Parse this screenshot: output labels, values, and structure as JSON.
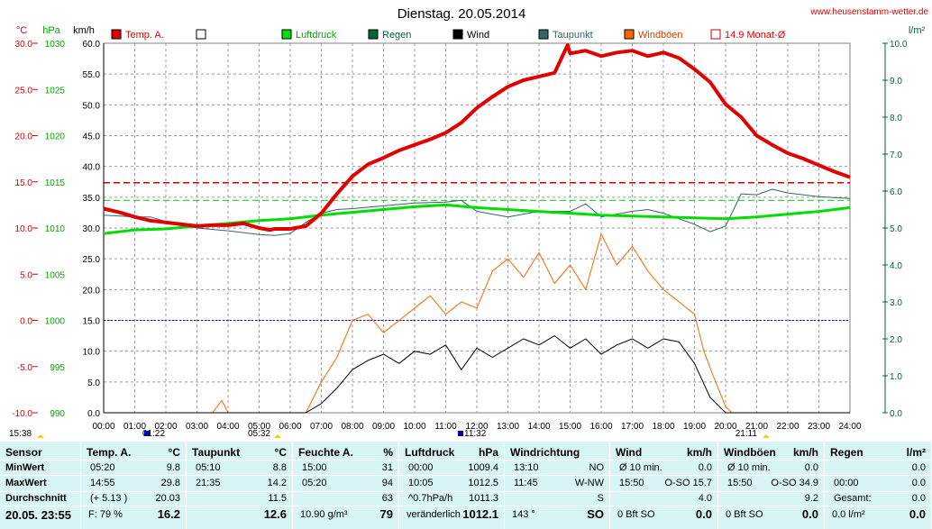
{
  "chart_data": {
    "type": "line",
    "title": "Dienstag. 20.05.2014",
    "website": "www.heusenstamm-wetter.de",
    "units": {
      "temp": "°C",
      "pressure": "hPa",
      "speed": "km/h",
      "rain": "l/m²"
    },
    "axes": {
      "temp_ticks": [
        "30.0",
        "25.0",
        "20.0",
        "15.0",
        "10.0",
        "5.0",
        "0.0",
        "-5.0",
        "-10.0"
      ],
      "pressure_ticks": [
        "1030",
        "1025",
        "1020",
        "1015",
        "1010",
        "1005",
        "1000",
        "995",
        "990"
      ],
      "speed_ticks": [
        "60.0",
        "55.0",
        "50.0",
        "45.0",
        "40.0",
        "35.0",
        "30.0",
        "25.0",
        "20.0",
        "15.0",
        "10.0",
        "5.0",
        "0.0"
      ],
      "rain_ticks": [
        "10.0",
        "9.0",
        "8.0",
        "7.0",
        "6.0",
        "5.0",
        "4.0",
        "3.0",
        "2.0",
        "1.0",
        "0.0"
      ],
      "temp_range": [
        -10,
        30
      ],
      "pressure_range": [
        990,
        1030
      ],
      "speed_range": [
        0,
        60
      ],
      "rain_range": [
        0,
        10
      ],
      "x_ticks": [
        "00:00",
        "01:00",
        "02:00",
        "03:00",
        "04:00",
        "05:00",
        "06:00",
        "07:00",
        "08:00",
        "09:00",
        "10:00",
        "11:00",
        "12:00",
        "13:00",
        "14:00",
        "15:00",
        "16:00",
        "17:00",
        "18:00",
        "19:00",
        "20:00",
        "21:00",
        "22:00",
        "23:00",
        "24:00"
      ],
      "grid": true
    },
    "legend": [
      {
        "name": "Temp. A.",
        "color": "#e00000",
        "style": "filled"
      },
      {
        "name": "",
        "color": "#ffffff",
        "style": "outline"
      },
      {
        "name": "Luftdruck",
        "color": "#00dd00",
        "style": "filled"
      },
      {
        "name": "Regen",
        "color": "#006633",
        "style": "filled"
      },
      {
        "name": "Wind",
        "color": "#000000",
        "style": "filled"
      },
      {
        "name": "Taupunkt",
        "color": "#336666",
        "style": "filled"
      },
      {
        "name": "Windböen",
        "color": "#ff6600",
        "style": "filled"
      },
      {
        "name": "14.9 Monat-Ø",
        "color": "#cc0000",
        "style": "outline"
      }
    ],
    "reference_lines": {
      "month_avg_temp": 14.9,
      "pressure_ref": 1013.0,
      "zero_temp": 0.0
    },
    "x_markers": [
      {
        "label": "15:38",
        "row": 1
      },
      {
        "label": "01:22",
        "row": 1
      },
      {
        "label": "05:32",
        "row": 1
      },
      {
        "label": "11:32",
        "row": 1
      },
      {
        "label": "21:11",
        "row": 1
      }
    ],
    "series": [
      {
        "name": "Temp. A.",
        "axis": "temp",
        "x": [
          0,
          0.5,
          1,
          1.5,
          2,
          2.5,
          3,
          3.5,
          4,
          4.5,
          5,
          5.33,
          5.5,
          6,
          6.5,
          7,
          7.5,
          8,
          8.5,
          9,
          9.5,
          10,
          10.5,
          11,
          11.5,
          12,
          12.5,
          13,
          13.5,
          14,
          14.5,
          14.92,
          15,
          15.5,
          16,
          16.5,
          17,
          17.5,
          18,
          18.5,
          19,
          19.5,
          20,
          20.5,
          21,
          21.5,
          22,
          22.5,
          23,
          23.5,
          24
        ],
        "y": [
          12.1,
          11.7,
          11.2,
          10.8,
          10.6,
          10.4,
          10.2,
          10.3,
          10.3,
          10.5,
          10.0,
          9.8,
          9.9,
          9.9,
          10.2,
          11.6,
          13.7,
          15.6,
          16.9,
          17.6,
          18.4,
          19.0,
          19.6,
          20.3,
          21.4,
          23.0,
          24.2,
          25.3,
          26.0,
          26.4,
          26.8,
          29.8,
          28.9,
          29.2,
          28.6,
          29.0,
          29.2,
          28.6,
          29.0,
          28.4,
          27.2,
          25.8,
          23.4,
          22.0,
          20.0,
          19.0,
          18.1,
          17.5,
          16.8,
          16.1,
          15.5
        ]
      },
      {
        "name": "Taupunkt",
        "axis": "temp",
        "x": [
          0,
          1,
          1.5,
          2,
          3,
          4,
          5,
          5.5,
          6,
          6.5,
          7,
          7.5,
          8,
          9,
          10,
          11,
          11.5,
          12,
          13,
          14,
          15,
          15.5,
          16,
          17,
          17.5,
          18,
          19,
          19.5,
          20,
          20.5,
          21,
          21.5,
          22,
          23,
          24
        ],
        "y": [
          11.4,
          11.2,
          11.2,
          10.7,
          10.0,
          9.7,
          9.3,
          9.2,
          9.4,
          10.6,
          11.6,
          12.0,
          12.1,
          12.4,
          12.7,
          12.8,
          13.0,
          11.8,
          11.2,
          11.8,
          11.8,
          12.6,
          11.2,
          11.8,
          12.0,
          11.6,
          10.4,
          9.6,
          10.2,
          13.7,
          13.6,
          14.2,
          13.8,
          13.4,
          13.2
        ]
      },
      {
        "name": "Luftdruck",
        "axis": "pressure",
        "x": [
          0,
          1,
          2,
          3,
          4,
          5,
          6,
          7,
          8,
          9,
          10,
          11,
          12,
          13,
          14,
          15,
          16,
          17,
          18,
          19,
          20,
          21,
          22,
          23,
          24
        ],
        "y": [
          1009.4,
          1009.8,
          1009.9,
          1010.2,
          1010.5,
          1010.8,
          1011.0,
          1011.4,
          1011.7,
          1012.0,
          1012.3,
          1012.5,
          1012.2,
          1012.0,
          1011.8,
          1011.6,
          1011.4,
          1011.3,
          1011.2,
          1011.1,
          1011.0,
          1011.2,
          1011.5,
          1011.8,
          1012.2
        ]
      },
      {
        "name": "Wind",
        "axis": "speed",
        "x": [
          0,
          6.5,
          7,
          7.5,
          8,
          8.5,
          9,
          9.5,
          10,
          10.5,
          11,
          11.5,
          12,
          12.5,
          13,
          13.5,
          14,
          14.5,
          15,
          15.5,
          16,
          16.5,
          17,
          17.5,
          18,
          18.5,
          19,
          19.5,
          20,
          24
        ],
        "y": [
          0,
          0,
          1.5,
          4.0,
          7.0,
          8.5,
          9.5,
          8.0,
          10.0,
          9.5,
          11.0,
          7.0,
          10.5,
          9.0,
          10.5,
          12.0,
          11.0,
          12.5,
          10.5,
          12.0,
          9.5,
          11.0,
          12.0,
          10.5,
          12.0,
          11.5,
          8.0,
          2.5,
          0,
          0
        ]
      },
      {
        "name": "Windböen",
        "axis": "speed",
        "x": [
          0,
          3.5,
          3.8,
          4,
          6.5,
          7,
          7.5,
          8,
          8.5,
          9,
          9.5,
          10,
          10.5,
          11,
          11.5,
          12,
          12.5,
          13,
          13.5,
          14,
          14.5,
          15,
          15.5,
          16,
          16.5,
          17,
          17.5,
          18,
          18.5,
          19,
          19.3,
          19.6,
          20,
          20.2,
          24
        ],
        "y": [
          0,
          0,
          2.0,
          0,
          0,
          5.0,
          9.0,
          15.0,
          16.0,
          13.0,
          15.0,
          17.0,
          19.0,
          16.0,
          18.0,
          17.0,
          23.0,
          25.0,
          22.0,
          26.0,
          21.0,
          24.0,
          20.0,
          29.0,
          24.0,
          27.0,
          23.0,
          20.0,
          18.0,
          16.0,
          10.0,
          6.0,
          1.0,
          0,
          0
        ]
      }
    ]
  },
  "table": {
    "columns": [
      {
        "id": "sensor",
        "header": "Sensor",
        "unit": "",
        "rows": [
          "MinWert",
          "MaxWert",
          "Durchschnitt"
        ],
        "footer": "20.05. 23:55"
      },
      {
        "id": "temp",
        "header": "Temp. A.",
        "unit": "°C",
        "rows": [
          {
            "time": "05:20",
            "value": "9.8"
          },
          {
            "time": "14:55",
            "value": "29.8"
          },
          {
            "time": "(+ 5.13 )",
            "value": "20.03"
          }
        ],
        "footer_left": "F: 79 %",
        "footer_value": "16.2"
      },
      {
        "id": "taupunkt",
        "header": "Taupunkt",
        "unit": "°C",
        "rows": [
          {
            "time": "05:10",
            "value": "8.8"
          },
          {
            "time": "21:35",
            "value": "14.2"
          },
          {
            "time": "",
            "value": "11.5"
          }
        ],
        "footer_left": "",
        "footer_value": "12.6"
      },
      {
        "id": "feuchte",
        "header": "Feuchte A.",
        "unit": "%",
        "rows": [
          {
            "time": "15:00",
            "value": "31"
          },
          {
            "time": "05:20",
            "value": "94"
          },
          {
            "time": "",
            "value": "63"
          }
        ],
        "footer_left": "10.90 g/m³",
        "footer_value": "79"
      },
      {
        "id": "luftdruck",
        "header": "Luftdruck",
        "unit": "hPa",
        "rows": [
          {
            "time": "00:00",
            "value": "1009.4"
          },
          {
            "time": "10:05",
            "value": "1012.5"
          },
          {
            "time": "^0.7hPa/h",
            "value": "1011.3"
          }
        ],
        "footer_left": "veränderlich",
        "footer_value": "1012.1"
      },
      {
        "id": "windrichtung",
        "header": "Windrichtung",
        "unit": "",
        "rows": [
          {
            "time": "13:10",
            "value": "NO"
          },
          {
            "time": "11:45",
            "value": "W-NW"
          },
          {
            "time": "",
            "value": "S"
          }
        ],
        "footer_left": "143 °",
        "footer_value": "SO"
      },
      {
        "id": "wind",
        "header": "Wind",
        "unit": "km/h",
        "rows": [
          {
            "time": "Ø 10 min.",
            "value": "0.0"
          },
          {
            "time": "15:50",
            "value": "O-SO 15.7"
          },
          {
            "time": "",
            "value": "4.0"
          }
        ],
        "footer_left": "0 Bft SO",
        "footer_value": "0.0"
      },
      {
        "id": "windboeen",
        "header": "Windböen",
        "unit": "km/h",
        "rows": [
          {
            "time": "Ø 10 min.",
            "value": "0.0"
          },
          {
            "time": "15:50",
            "value": "O-SO 34.9"
          },
          {
            "time": "",
            "value": "9.2"
          }
        ],
        "footer_left": "0 Bft SO",
        "footer_value": "0.0"
      },
      {
        "id": "regen",
        "header": "Regen",
        "unit": "l/m²",
        "rows": [
          {
            "time": "",
            "value": "0.0"
          },
          {
            "time": "00:00",
            "value": "0.0"
          },
          {
            "time": "Gesamt:",
            "value": "0.0"
          }
        ],
        "footer_left": "0.0 l/m²",
        "footer_value": "0.0"
      }
    ]
  }
}
